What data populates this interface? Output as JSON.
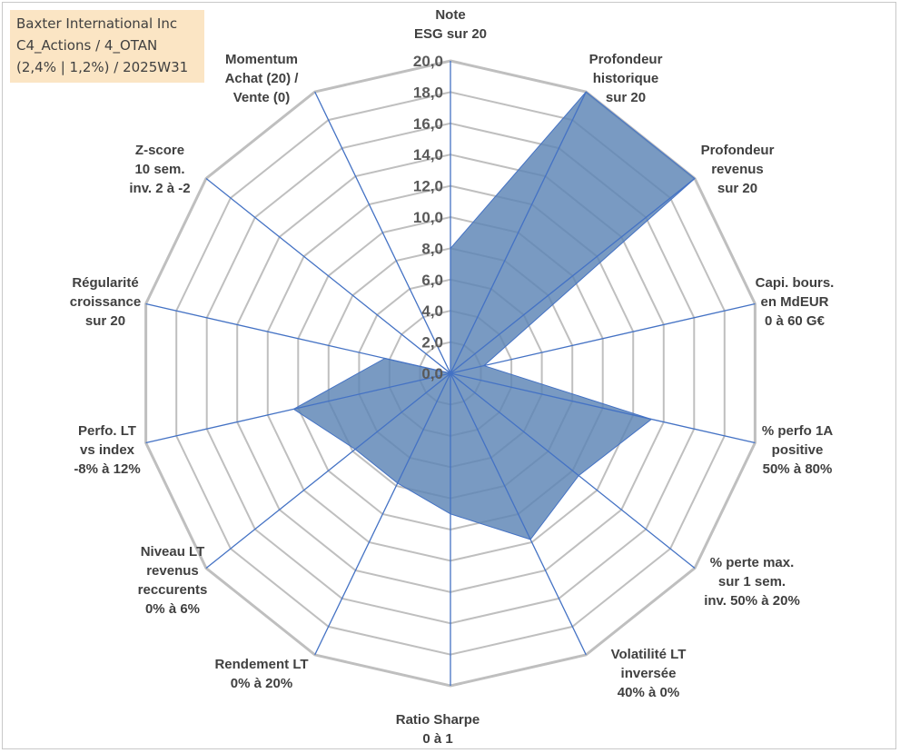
{
  "title": {
    "lines": [
      "Baxter International Inc",
      "C4_Actions / 4_OTAN",
      "(2,4% | 1,2%) / 2025W31"
    ]
  },
  "colors": {
    "grid": "#bfbfbf",
    "spoke": "#4472c4",
    "fill": "#5b84b5",
    "fill_stroke": "#4472c4",
    "title_bg": "#fbe5c4"
  },
  "chart_data": {
    "type": "radar",
    "title": "Baxter International Inc",
    "rmin": 0,
    "rmax": 20,
    "tick_step": 2,
    "ticks": [
      "0,0",
      "2,0",
      "4,0",
      "6,0",
      "8,0",
      "10,0",
      "12,0",
      "14,0",
      "16,0",
      "18,0",
      "20,0"
    ],
    "grid": true,
    "legend": "none",
    "axes": [
      {
        "label": [
          "Note",
          "ESG sur 20"
        ],
        "value": 8.0
      },
      {
        "label": [
          "Profondeur",
          "historique",
          "sur 20"
        ],
        "value": 20.0
      },
      {
        "label": [
          "Profondeur",
          "revenus",
          "sur 20"
        ],
        "value": 20.0
      },
      {
        "label": [
          "Capi. bours.",
          "en MdEUR",
          "0 à 60 G€"
        ],
        "value": 2.2
      },
      {
        "label": [
          "% perfo 1A",
          "positive",
          "50% à 80%"
        ],
        "value": 13.2
      },
      {
        "label": [
          "% perte max.",
          "sur 1 sem.",
          "inv. 50% à 20%"
        ],
        "value": 10.5
      },
      {
        "label": [
          "Volatilité LT",
          "inversée",
          "40% à 0%"
        ],
        "value": 11.8
      },
      {
        "label": [
          "Ratio Sharpe",
          "0 à 1"
        ],
        "value": 9.0
      },
      {
        "label": [
          "Rendement LT",
          "0% à 20%"
        ],
        "value": 7.8
      },
      {
        "label": [
          "Niveau LT",
          "revenus",
          "reccurents",
          "0% à 6%"
        ],
        "value": 7.8
      },
      {
        "label": [
          "Perfo. LT",
          "vs index",
          "-8% à 12%"
        ],
        "value": 10.3
      },
      {
        "label": [
          "Régularité",
          "croissance",
          "sur 20"
        ],
        "value": 4.3
      },
      {
        "label": [
          "Z-score",
          "10 sem.",
          "inv. 2 à -2"
        ],
        "value": 0.0
      },
      {
        "label": [
          "Momentum",
          "Achat (20) /",
          "Vente (0)"
        ],
        "value": 0.0
      }
    ]
  }
}
